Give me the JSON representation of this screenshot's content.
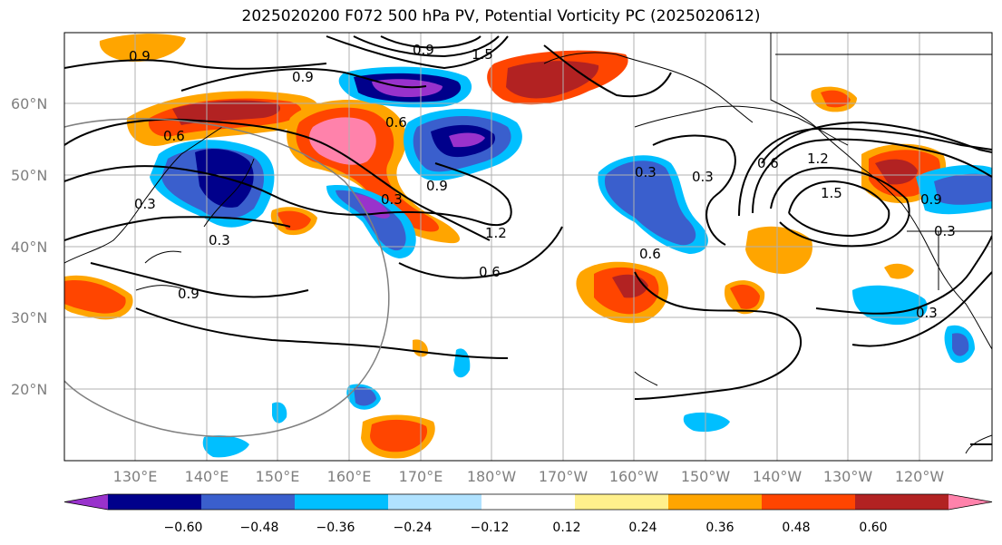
{
  "title": "2025020200 F072 500 hPa PV, Potential Vorticity PC (2025020612)",
  "lat_labels": [
    "60°N",
    "50°N",
    "40°N",
    "30°N",
    "20°N"
  ],
  "lon_labels": [
    "130°E",
    "140°E",
    "150°E",
    "160°E",
    "170°E",
    "180°W",
    "170°W",
    "160°W",
    "150°W",
    "140°W",
    "130°W",
    "120°W"
  ],
  "colorbar": {
    "ticks": [
      "−0.60",
      "−0.48",
      "−0.36",
      "−0.24",
      "−0.12",
      "0.12",
      "0.24",
      "0.36",
      "0.48",
      "0.60"
    ],
    "colors": [
      "#9932cc",
      "#00008b",
      "#3a5fcd",
      "#00bfff",
      "#b0e2ff",
      "#ffffff",
      "#fff08c",
      "#ffa500",
      "#ff4500",
      "#b22222",
      "#ff82ab"
    ]
  },
  "contour_labels": [
    "0.9",
    "0.9",
    "0.9",
    "1.5",
    "0.3",
    "0.6",
    "0.3",
    "0.3",
    "0.9",
    "1.2",
    "0.6",
    "1.2",
    "0.6",
    "1.5",
    "0.3",
    "0.6",
    "0.3",
    "0.9",
    "0.3",
    "0.9",
    "0.6",
    "0.3"
  ]
}
